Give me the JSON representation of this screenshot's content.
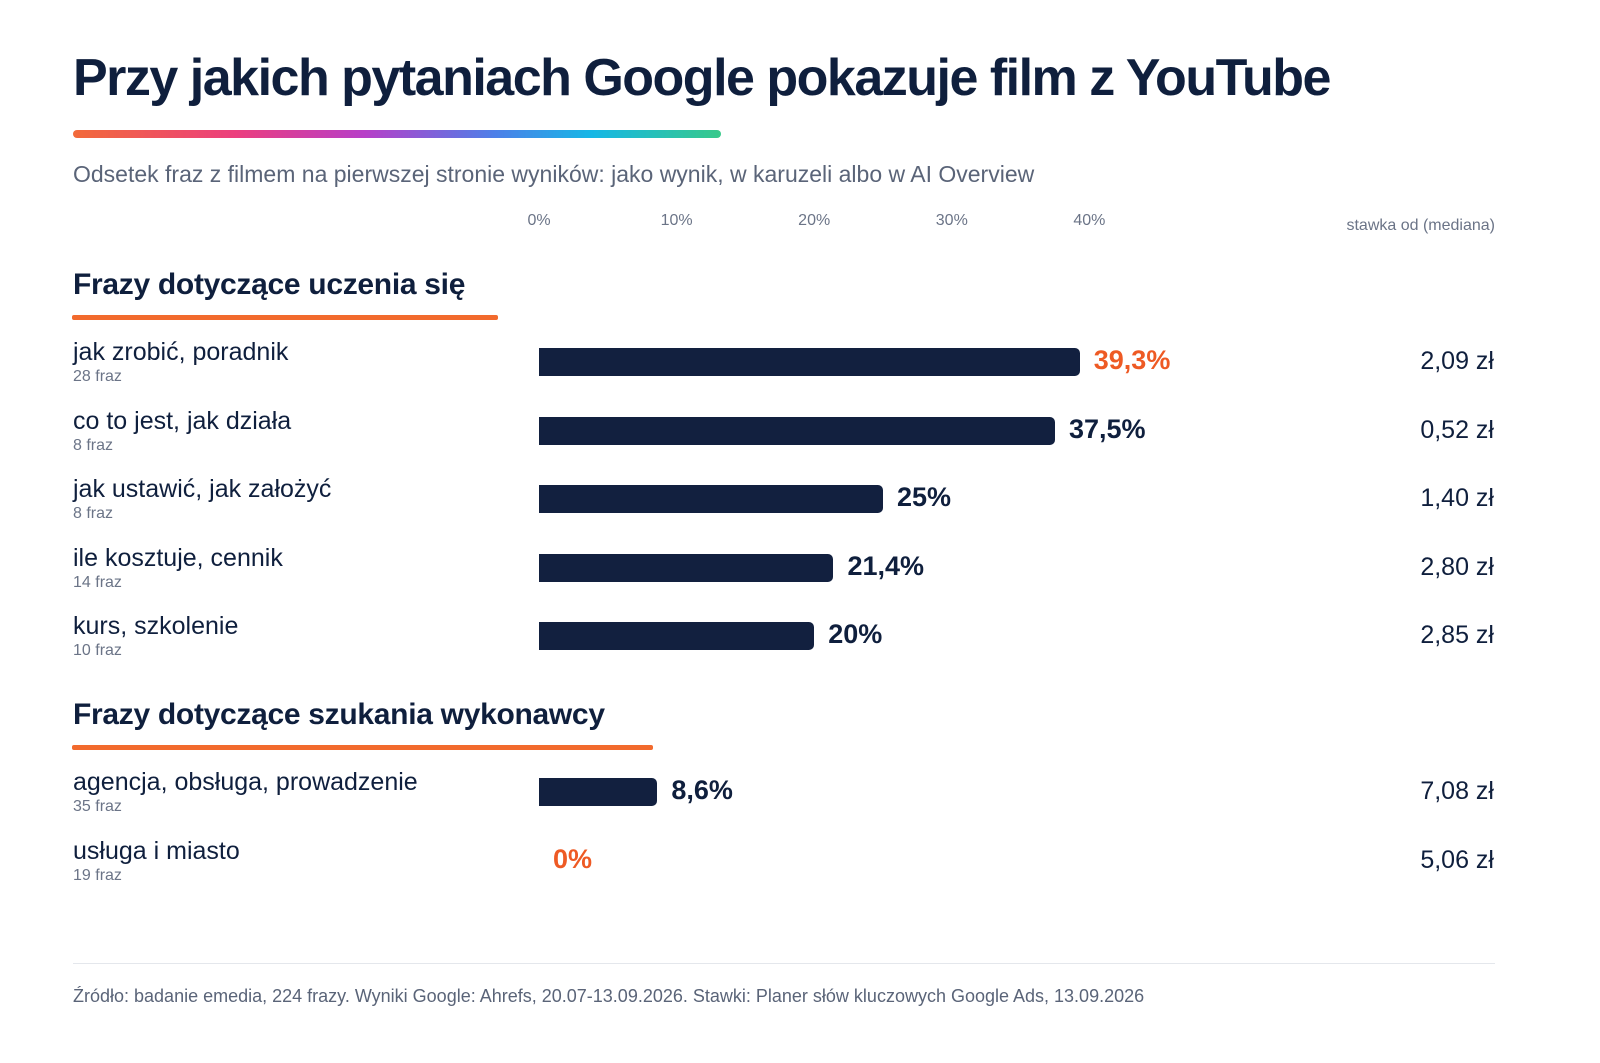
{
  "title": "Przy jakich pytaniach Google pokazuje film z YouTube",
  "subtitle": "Odsetek fraz z filmem na pierwszej stronie wyników: jako wynik, w karuzeli albo w AI Overview",
  "rate_header": "stawka od (mediana)",
  "source": "Źródło: badanie emedia, 224 frazy. Wyniki Google: Ahrefs, 20.07-13.09.2026. Stawki: Planer słów kluczowych Google Ads, 13.09.2026",
  "colors": {
    "bar": "#12203f",
    "highlight": "#ee5a24",
    "section_line": "#f26a2d"
  },
  "chart_data": {
    "type": "bar",
    "orientation": "horizontal",
    "xlim": [
      0,
      40
    ],
    "x_ticks": [
      "0%",
      "10%",
      "20%",
      "30%",
      "40%"
    ],
    "groups": [
      {
        "name": "Frazy dotyczące uczenia się",
        "rows": [
          {
            "label": "jak zrobić, poradnik",
            "count": "28 fraz",
            "value": 39.3,
            "value_label": "39,3%",
            "highlight": true,
            "rate": "2,09 zł"
          },
          {
            "label": "co to jest, jak działa",
            "count": "8 fraz",
            "value": 37.5,
            "value_label": "37,5%",
            "highlight": false,
            "rate": "0,52 zł"
          },
          {
            "label": "jak ustawić, jak założyć",
            "count": "8 fraz",
            "value": 25,
            "value_label": "25%",
            "highlight": false,
            "rate": "1,40 zł"
          },
          {
            "label": "ile kosztuje, cennik",
            "count": "14 fraz",
            "value": 21.4,
            "value_label": "21,4%",
            "highlight": false,
            "rate": "2,80 zł"
          },
          {
            "label": "kurs, szkolenie",
            "count": "10 fraz",
            "value": 20,
            "value_label": "20%",
            "highlight": false,
            "rate": "2,85 zł"
          }
        ]
      },
      {
        "name": "Frazy dotyczące szukania wykonawcy",
        "rows": [
          {
            "label": "agencja, obsługa, prowadzenie",
            "count": "35 fraz",
            "value": 8.6,
            "value_label": "8,6%",
            "highlight": false,
            "rate": "7,08 zł"
          },
          {
            "label": "usługa i miasto",
            "count": "19 fraz",
            "value": 0,
            "value_label": "0%",
            "highlight": true,
            "rate": "5,06 zł"
          }
        ]
      }
    ]
  }
}
